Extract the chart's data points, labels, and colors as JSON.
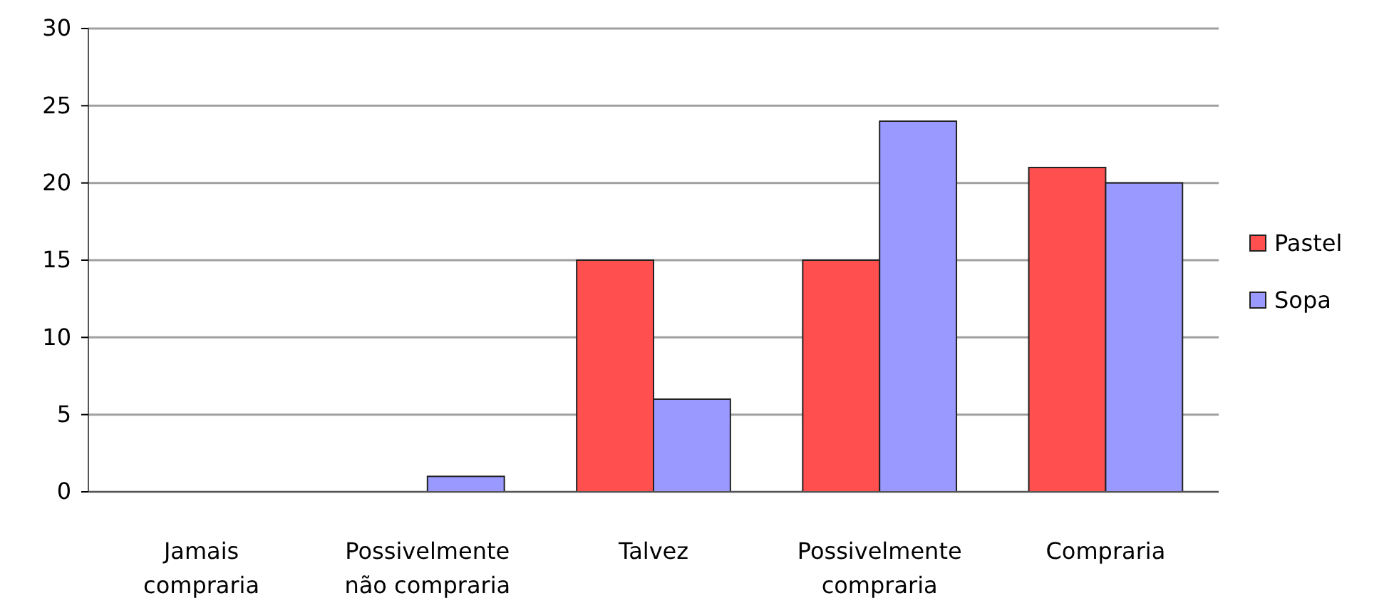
{
  "chart_data": {
    "type": "bar",
    "categories": [
      "Jamais compraria",
      "Possivelmente não compraria",
      "Talvez",
      "Possivelmente compraria",
      "Compraria"
    ],
    "series": [
      {
        "name": "Pastel",
        "color": "#ff4f4f",
        "values": [
          0,
          0,
          15,
          15,
          21
        ]
      },
      {
        "name": "Sopa",
        "color": "#9999ff",
        "values": [
          0,
          1,
          6,
          24,
          20
        ]
      }
    ],
    "ylim": [
      0,
      30
    ],
    "yticks": [
      0,
      5,
      10,
      15,
      20,
      25,
      30
    ],
    "grid": "y",
    "legend": "right"
  }
}
